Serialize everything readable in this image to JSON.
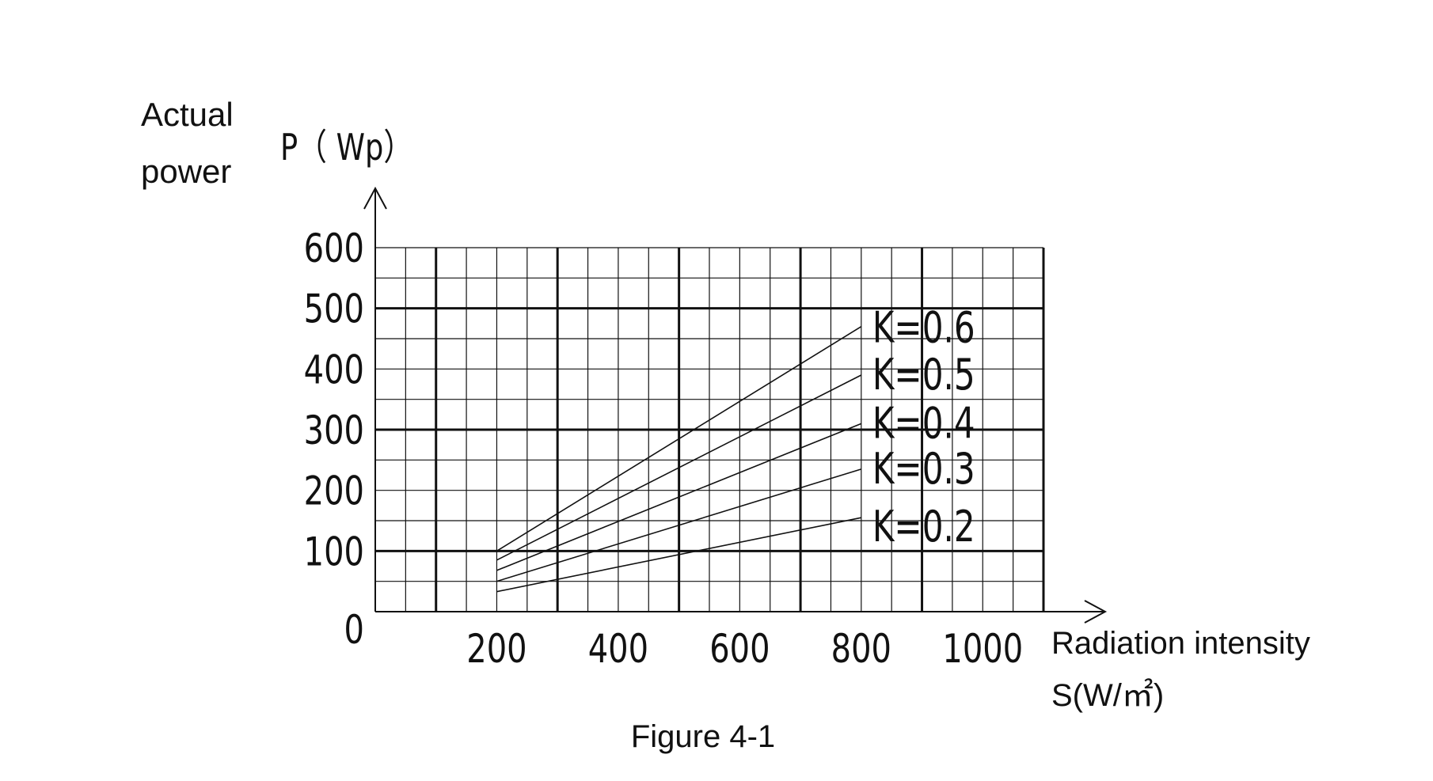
{
  "chart_data": {
    "type": "line",
    "title": "",
    "caption": "Figure 4-1",
    "ylabel_lines": [
      "Actual",
      "power"
    ],
    "ylabel_unit": "P（ Wp）",
    "xlabel": "Radiation intensity",
    "xlabel_unit": "S(W/㎡)",
    "xlim": [
      0,
      1100
    ],
    "ylim": [
      0,
      600
    ],
    "x_ticks": [
      200,
      400,
      600,
      800,
      1000
    ],
    "y_ticks": [
      0,
      100,
      200,
      300,
      400,
      500,
      600
    ],
    "grid": true,
    "series": [
      {
        "name": "K=0.6",
        "x": [
          200,
          800
        ],
        "y": [
          100,
          470
        ]
      },
      {
        "name": "K=0.5",
        "x": [
          200,
          800
        ],
        "y": [
          85,
          390
        ]
      },
      {
        "name": "K=0.4",
        "x": [
          200,
          800
        ],
        "y": [
          68,
          310
        ]
      },
      {
        "name": "K=0.3",
        "x": [
          200,
          800
        ],
        "y": [
          50,
          235
        ]
      },
      {
        "name": "K=0.2",
        "x": [
          200,
          800
        ],
        "y": [
          33,
          155
        ]
      }
    ]
  }
}
